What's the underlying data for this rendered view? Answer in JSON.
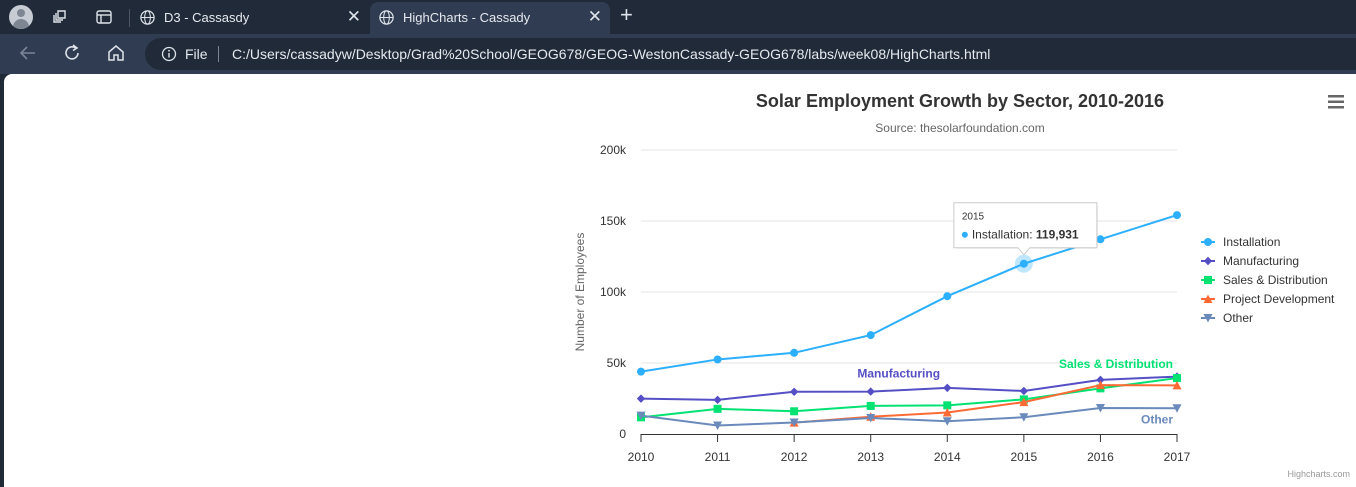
{
  "browser": {
    "tabs": [
      {
        "title": "D3 - Cassasdy",
        "active": false
      },
      {
        "title": "HighCharts - Cassady",
        "active": true
      }
    ],
    "address": {
      "scheme_label": "File",
      "url": "C:/Users/cassadyw/Desktop/Grad%20School/GEOG678/GEOG-WestonCassady-GEOG678/labs/week08/HighCharts.html"
    }
  },
  "chart_data": {
    "type": "line",
    "title": "Solar Employment Growth by Sector, 2010-2016",
    "subtitle": "Source: thesolarfoundation.com",
    "ylabel": "Number of Employees",
    "xlabel": "",
    "x": [
      2010,
      2011,
      2012,
      2013,
      2014,
      2015,
      2016,
      2017
    ],
    "ylim": [
      0,
      200000
    ],
    "yticks": [
      0,
      50000,
      100000,
      150000,
      200000
    ],
    "ytick_labels": [
      "0",
      "50k",
      "100k",
      "150k",
      "200k"
    ],
    "grid": true,
    "legend_position": "right",
    "series": [
      {
        "name": "Installation",
        "color": "#2caffe",
        "marker": "circle",
        "values": [
          43934,
          52503,
          57177,
          69658,
          97031,
          119931,
          137133,
          154175
        ]
      },
      {
        "name": "Manufacturing",
        "color": "#544fc5",
        "marker": "diamond",
        "values": [
          24916,
          24064,
          29742,
          29851,
          32490,
          30282,
          38121,
          40434
        ]
      },
      {
        "name": "Sales & Distribution",
        "color": "#00e272",
        "marker": "square",
        "values": [
          11744,
          17722,
          16005,
          19771,
          20185,
          24377,
          32147,
          39387
        ]
      },
      {
        "name": "Project Development",
        "color": "#fe6a35",
        "marker": "triangle",
        "values": [
          null,
          null,
          7988,
          12169,
          15112,
          22452,
          34400,
          34227
        ]
      },
      {
        "name": "Other",
        "color": "#6b8abc",
        "marker": "triangle-down",
        "values": [
          12908,
          5948,
          8105,
          11248,
          8989,
          11816,
          18274,
          18111
        ]
      }
    ],
    "annotations": [
      "Manufacturing",
      "Sales & Distribution",
      "Other"
    ],
    "tooltip": {
      "header": "2015",
      "series": "Installation",
      "value": "119,931"
    },
    "credits": "Highcharts.com"
  },
  "icons": {
    "menu": "hamburger-menu-icon"
  }
}
